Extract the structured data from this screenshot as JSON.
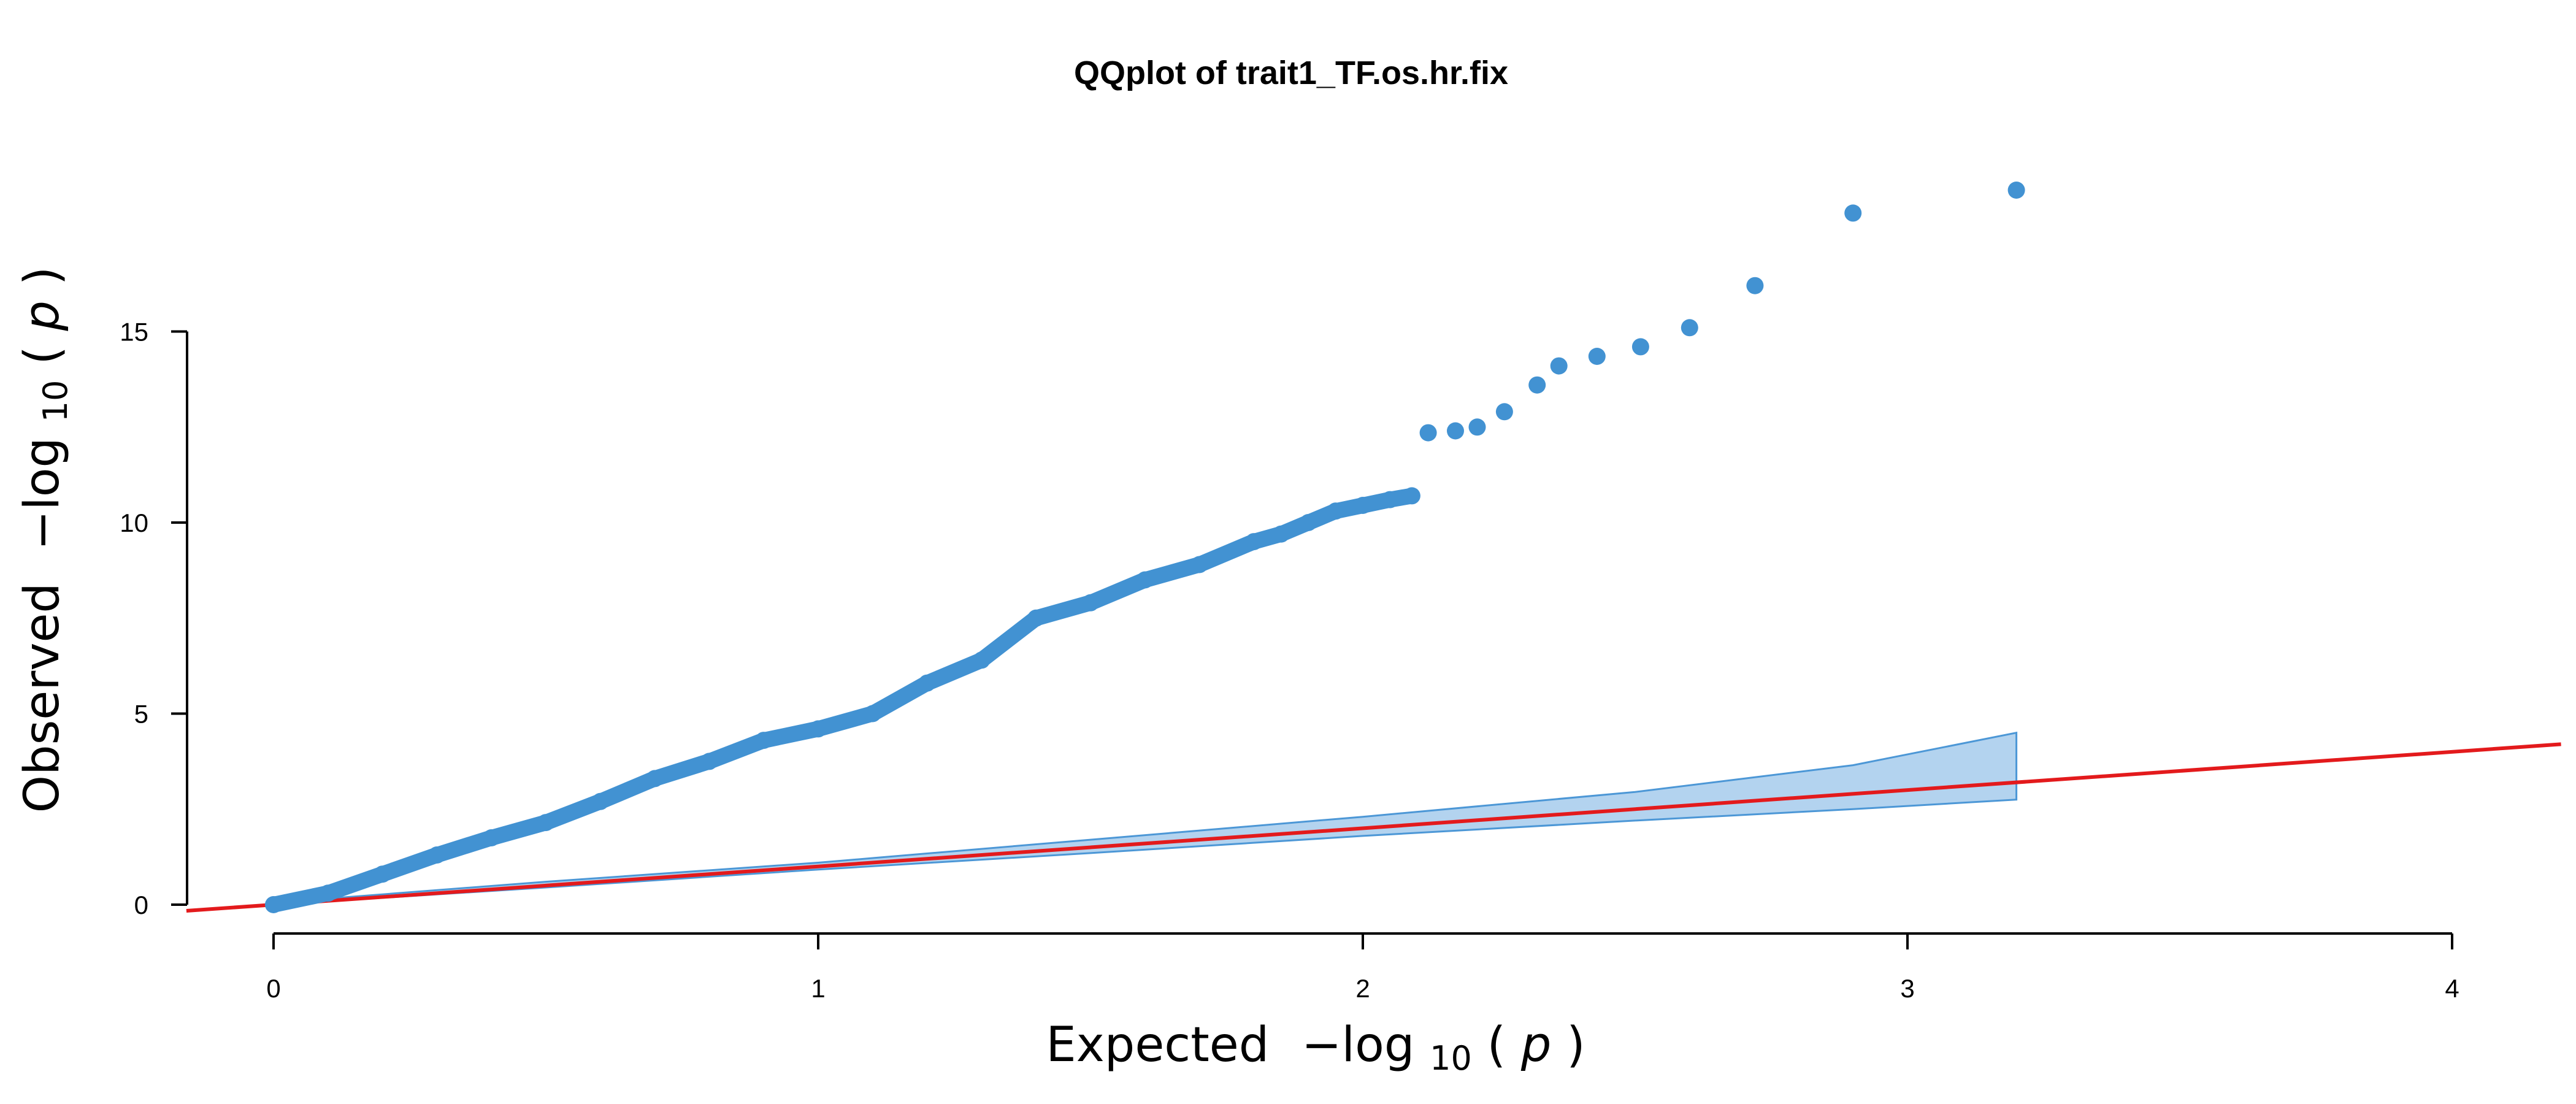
{
  "chart_data": {
    "type": "scatter",
    "title": "QQplot of trait1_TF.os.hr.fix",
    "xlabel": {
      "prefix": "Expected",
      "expr": "−log",
      "sub": "10",
      "arg": "p"
    },
    "ylabel": {
      "prefix": "Observed",
      "expr": "−log",
      "sub": "10",
      "arg": "p"
    },
    "x_ticks": [
      "0",
      "1",
      "2",
      "3",
      "4"
    ],
    "y_ticks": [
      "0",
      "5",
      "10",
      "15"
    ],
    "xlim": [
      -0.16,
      4.2
    ],
    "ylim": [
      0,
      18.6
    ],
    "grid": false,
    "legend": "none",
    "colors": {
      "points": "#4292d2",
      "band_fill": "#b3d3ef",
      "band_edge": "#4c97d6",
      "reference": "#e31a1c"
    },
    "reference_line": {
      "slope": 1,
      "intercept": 0
    },
    "confidence_band": {
      "x": [
        0,
        0.5,
        1.0,
        1.5,
        2.0,
        2.5,
        2.9,
        3.2
      ],
      "upper": [
        0.05,
        0.6,
        1.1,
        1.7,
        2.3,
        2.95,
        3.65,
        4.5
      ],
      "lower": [
        0,
        0.45,
        0.92,
        1.35,
        1.8,
        2.2,
        2.5,
        2.75
      ]
    },
    "series": [
      {
        "x": [
          0,
          0.1,
          0.2,
          0.3,
          0.4,
          0.5,
          0.6,
          0.7,
          0.8,
          0.9,
          1.0,
          1.1,
          1.2,
          1.3,
          1.4,
          1.5,
          1.6,
          1.7,
          1.8,
          1.85,
          1.9,
          1.95,
          2.0,
          2.05,
          2.09,
          2.12,
          2.17,
          2.21,
          2.26,
          2.32,
          2.36,
          2.43,
          2.51,
          2.6,
          2.72,
          2.9,
          3.2
        ],
        "y": [
          0.0,
          0.3,
          0.8,
          1.3,
          1.75,
          2.15,
          2.7,
          3.3,
          3.75,
          4.3,
          4.6,
          5.0,
          5.8,
          6.4,
          7.5,
          7.9,
          8.5,
          8.9,
          9.5,
          9.7,
          10.0,
          10.3,
          10.45,
          10.6,
          10.7,
          12.35,
          12.4,
          12.5,
          12.9,
          13.6,
          14.1,
          14.35,
          14.6,
          15.1,
          16.2,
          18.1,
          18.7
        ]
      }
    ]
  }
}
